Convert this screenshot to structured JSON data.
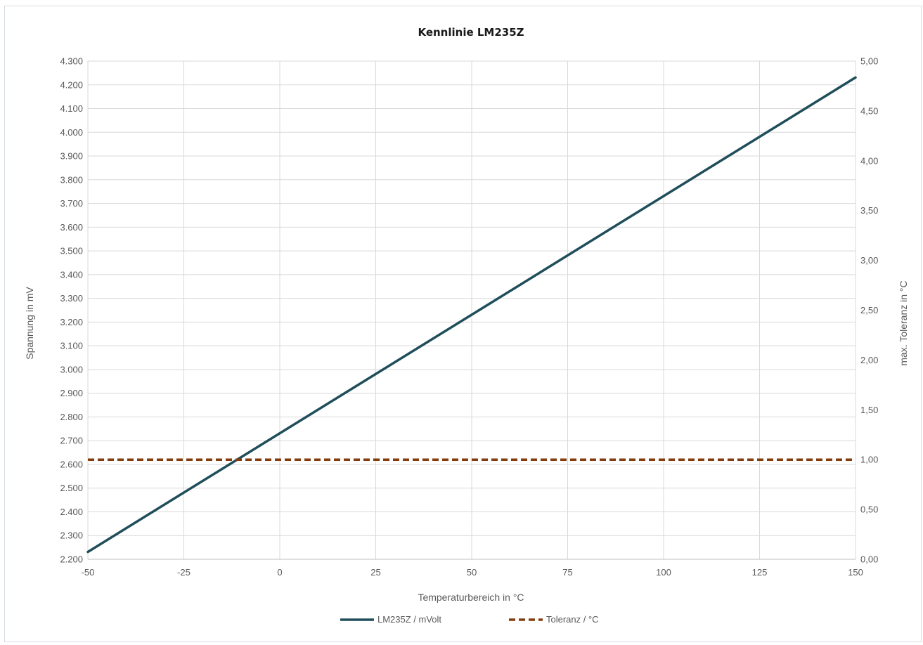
{
  "chart_data": {
    "type": "line",
    "title": "Kennlinie LM235Z",
    "xlabel": "Temperaturbereich in °C",
    "ylabel": "Spannung in mV",
    "y2label": "max. Toleranz in °C",
    "xlim": [
      -50,
      150
    ],
    "ylim": [
      2200,
      4300
    ],
    "y2lim": [
      0,
      5
    ],
    "x_ticks": [
      -50,
      -25,
      0,
      25,
      50,
      75,
      100,
      125,
      150
    ],
    "y_ticks": [
      2200,
      2300,
      2400,
      2500,
      2600,
      2700,
      2800,
      2900,
      3000,
      3100,
      3200,
      3300,
      3400,
      3500,
      3600,
      3700,
      3800,
      3900,
      4000,
      4100,
      4200,
      4300
    ],
    "y_tick_labels": [
      "2.200",
      "2.300",
      "2.400",
      "2.500",
      "2.600",
      "2.700",
      "2.800",
      "2.900",
      "3.000",
      "3.100",
      "3.200",
      "3.300",
      "3.400",
      "3.500",
      "3.600",
      "3.700",
      "3.800",
      "3.900",
      "4.000",
      "4.100",
      "4.200",
      "4.300"
    ],
    "y2_ticks": [
      0,
      0.5,
      1,
      1.5,
      2,
      2.5,
      3,
      3.5,
      4,
      4.5,
      5
    ],
    "y2_tick_labels": [
      "0,00",
      "0,50",
      "1,00",
      "1,50",
      "2,00",
      "2,50",
      "3,00",
      "3,50",
      "4,00",
      "4,50",
      "5,00"
    ],
    "grid": true,
    "legend_position": "bottom",
    "series": [
      {
        "name": "LM235Z / mVolt",
        "axis": "left",
        "style": "solid",
        "color": "#1f4e5a",
        "x": [
          -50,
          150
        ],
        "y": [
          2231,
          4231
        ]
      },
      {
        "name": "Toleranz / °C",
        "axis": "right",
        "style": "dashed",
        "color": "#843c0c",
        "x": [
          -50,
          150
        ],
        "y": [
          1.0,
          1.0
        ]
      }
    ]
  }
}
